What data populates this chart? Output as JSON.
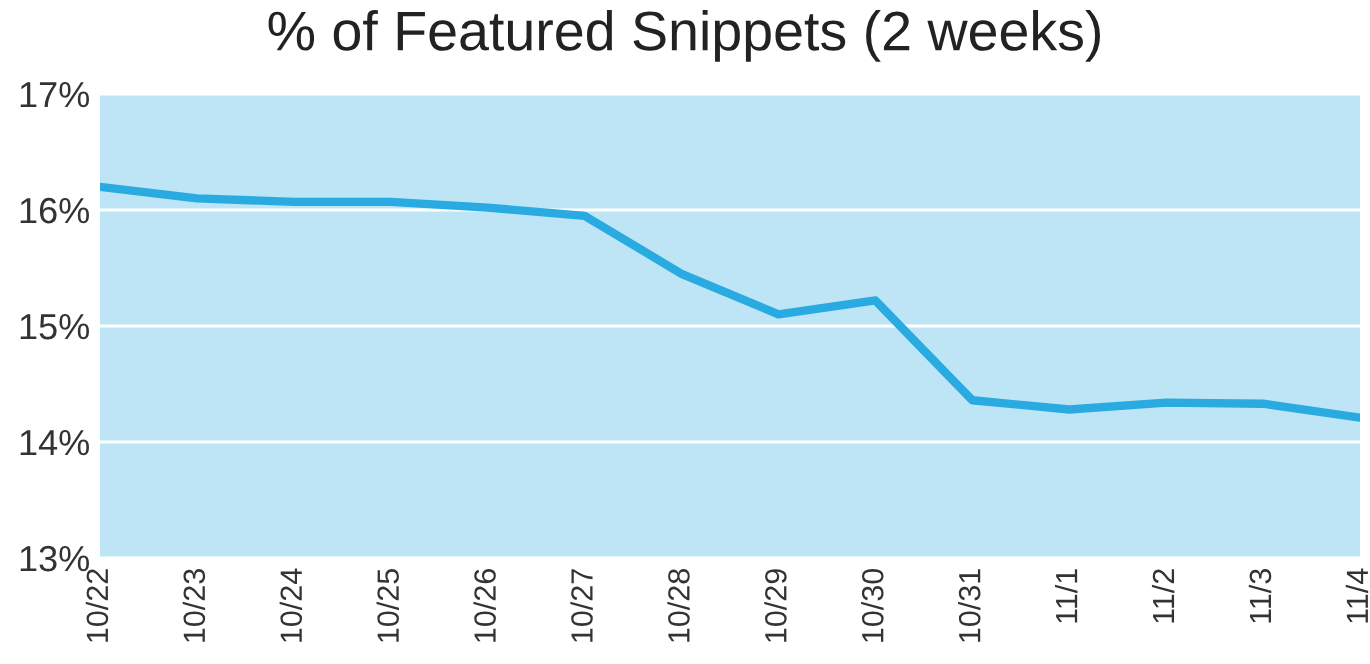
{
  "chart_data": {
    "type": "line",
    "title": "% of Featured Snippets (2 weeks)",
    "categories": [
      "10/22",
      "10/23",
      "10/24",
      "10/25",
      "10/26",
      "10/27",
      "10/28",
      "10/29",
      "10/30",
      "10/31",
      "11/1",
      "11/2",
      "11/3",
      "11/4"
    ],
    "series": [
      {
        "color": "#29abe2",
        "values": [
          16.2,
          16.1,
          16.07,
          16.07,
          16.02,
          15.95,
          15.45,
          15.1,
          15.22,
          14.36,
          14.28,
          14.34,
          14.33,
          14.21
        ]
      }
    ],
    "ylim": [
      13,
      17
    ],
    "yticks": [
      {
        "value": 13,
        "label": "13%"
      },
      {
        "value": 14,
        "label": "14%"
      },
      {
        "value": 15,
        "label": "15%"
      },
      {
        "value": 16,
        "label": "16%"
      },
      {
        "value": 17,
        "label": "17%"
      }
    ],
    "grid": "y",
    "legend": false,
    "marker": "none",
    "line_style": "solid"
  }
}
